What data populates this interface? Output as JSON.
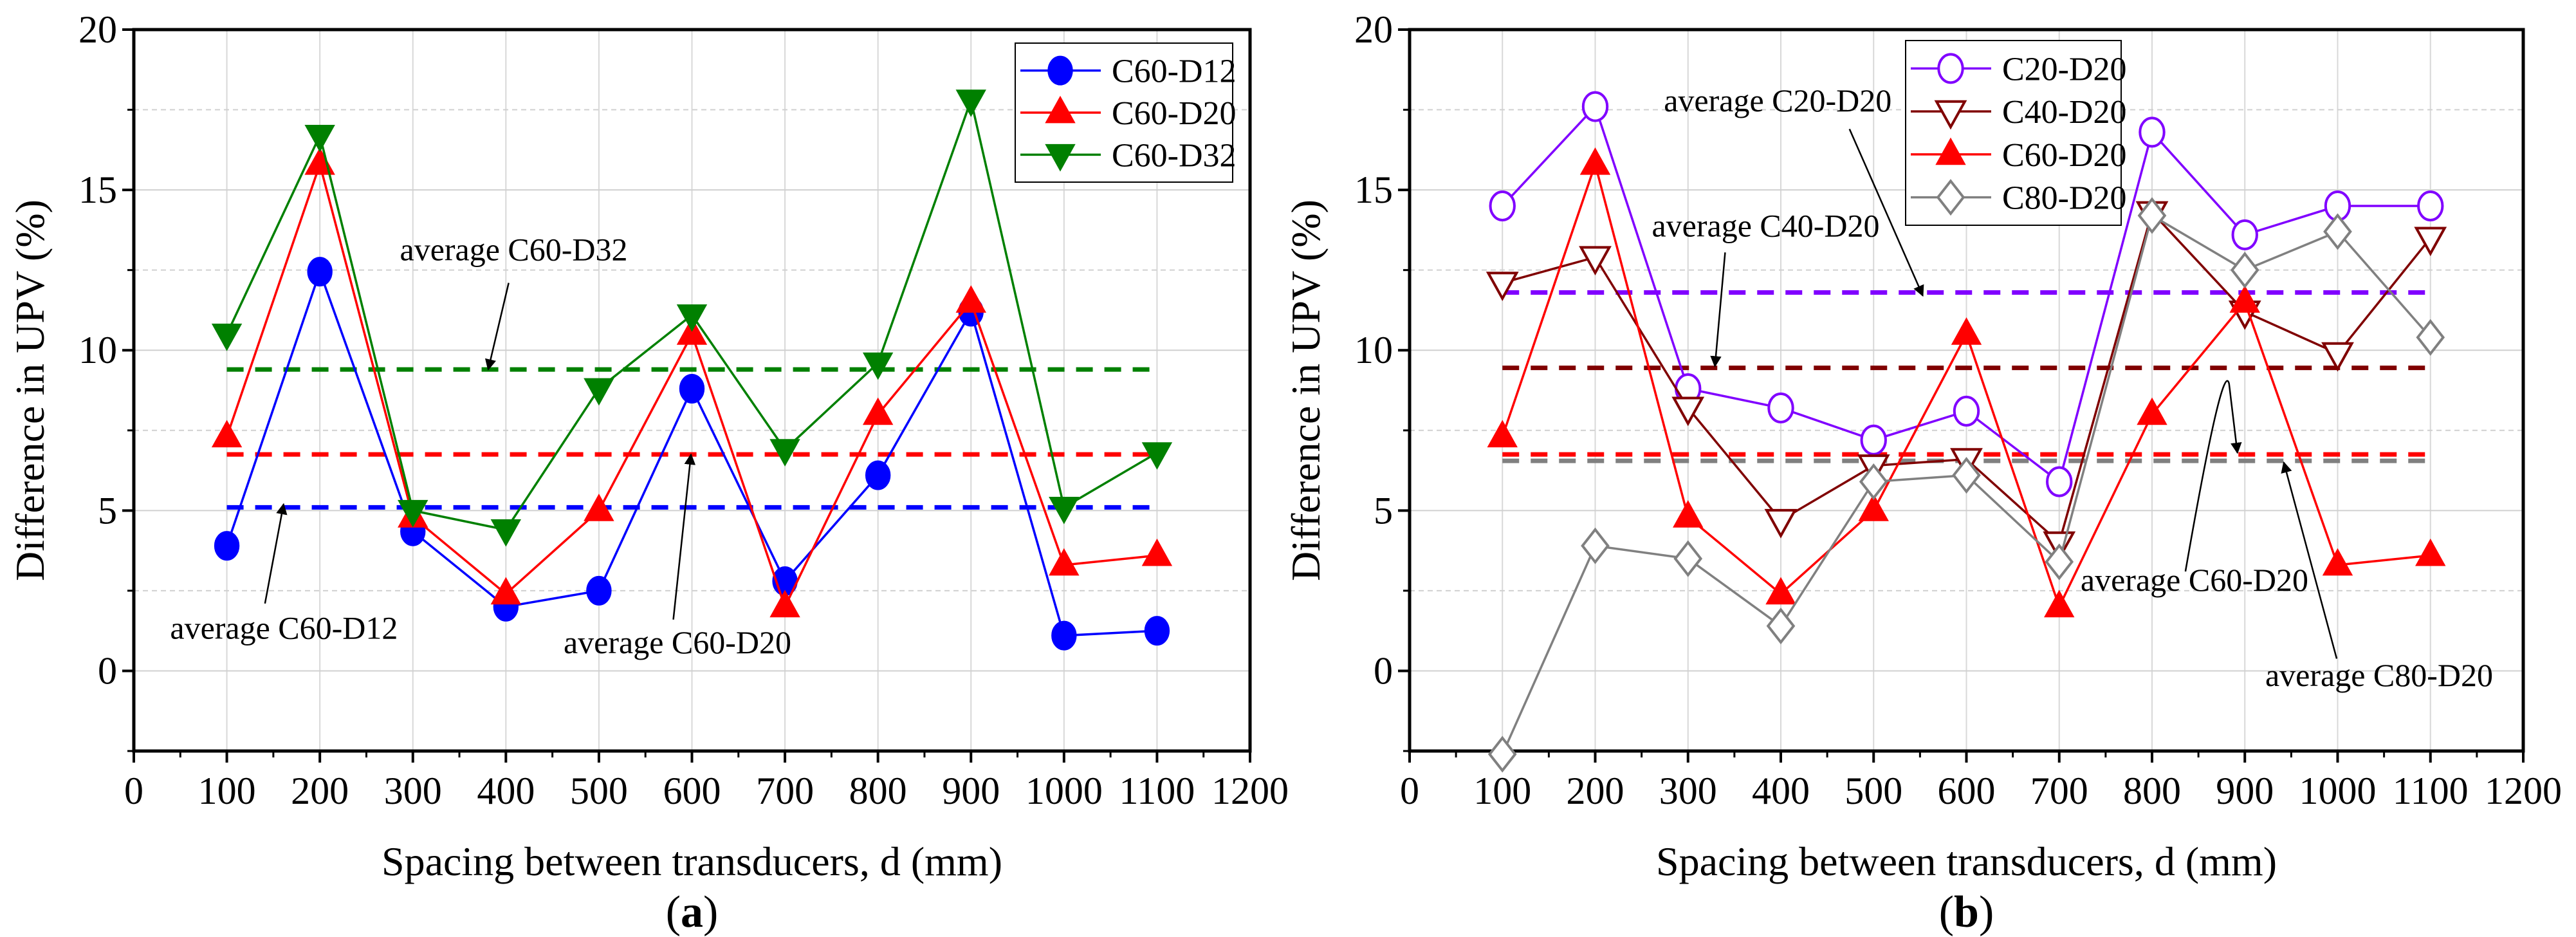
{
  "chart_data": [
    {
      "type": "line",
      "panel_label": "a",
      "xlabel": "Spacing between transducers, d (mm)",
      "ylabel": "Difference in UPV (%)",
      "xlim": [
        0,
        1200
      ],
      "ylim": [
        -2.5,
        20
      ],
      "xticks": [
        0,
        100,
        200,
        300,
        400,
        500,
        600,
        700,
        800,
        900,
        1000,
        1100,
        1200
      ],
      "yticks": [
        0,
        5,
        10,
        15,
        20
      ],
      "grid": true,
      "legend_position": "top-right",
      "x": [
        100,
        200,
        300,
        400,
        500,
        600,
        700,
        800,
        900,
        1000,
        1100
      ],
      "series": [
        {
          "name": "C60-D12",
          "color": "#0000ff",
          "marker": "circle-filled",
          "values": [
            3.9,
            12.45,
            4.35,
            2.0,
            2.5,
            8.8,
            2.8,
            6.1,
            11.2,
            1.1,
            1.25
          ],
          "average": 5.1
        },
        {
          "name": "C60-D20",
          "color": "#ff0000",
          "marker": "triangle-up-filled",
          "values": [
            7.3,
            15.8,
            4.8,
            2.4,
            5.0,
            10.5,
            2.0,
            8.0,
            11.5,
            3.3,
            3.6
          ],
          "average": 6.75
        },
        {
          "name": "C60-D32",
          "color": "#008000",
          "marker": "triangle-down-filled",
          "values": [
            10.5,
            16.7,
            5.0,
            4.4,
            8.8,
            11.1,
            6.9,
            9.6,
            17.8,
            5.1,
            6.8
          ],
          "average": 9.4
        }
      ],
      "annotations": [
        "average C60-D32",
        "average C60-D12",
        "average C60-D20"
      ]
    },
    {
      "type": "line",
      "panel_label": "b",
      "xlabel": "Spacing between transducers, d (mm)",
      "ylabel": "Difference in UPV (%)",
      "xlim": [
        0,
        1200
      ],
      "ylim": [
        -2.5,
        20
      ],
      "xticks": [
        0,
        100,
        200,
        300,
        400,
        500,
        600,
        700,
        800,
        900,
        1000,
        1100,
        1200
      ],
      "yticks": [
        0,
        5,
        10,
        15,
        20
      ],
      "grid": true,
      "legend_position": "top-center",
      "x": [
        100,
        200,
        300,
        400,
        500,
        600,
        700,
        800,
        900,
        1000,
        1100
      ],
      "series": [
        {
          "name": "C20-D20",
          "color": "#8000ff",
          "marker": "circle-open",
          "values": [
            14.5,
            17.6,
            8.8,
            8.2,
            7.2,
            8.1,
            5.9,
            16.8,
            13.6,
            14.5,
            14.5
          ],
          "average": 11.8
        },
        {
          "name": "C40-D20",
          "color": "#800000",
          "marker": "triangle-down-open",
          "values": [
            12.1,
            12.9,
            8.2,
            4.7,
            6.4,
            6.6,
            4.0,
            14.3,
            11.2,
            9.9,
            13.5
          ],
          "average": 9.45
        },
        {
          "name": "C60-D20",
          "color": "#ff0000",
          "marker": "triangle-up-filled",
          "values": [
            7.3,
            15.8,
            4.8,
            2.4,
            5.0,
            10.5,
            2.0,
            8.0,
            11.5,
            3.3,
            3.6
          ],
          "average": 6.75
        },
        {
          "name": "C80-D20",
          "color": "#808080",
          "marker": "diamond-open",
          "values": [
            -2.6,
            3.9,
            3.5,
            1.4,
            5.9,
            6.1,
            3.4,
            14.2,
            12.5,
            13.7,
            10.4
          ],
          "average": 6.55
        }
      ],
      "annotations": [
        "average C20-D20",
        "average C40-D20",
        "average C60-D20",
        "average C80-D20"
      ]
    }
  ]
}
